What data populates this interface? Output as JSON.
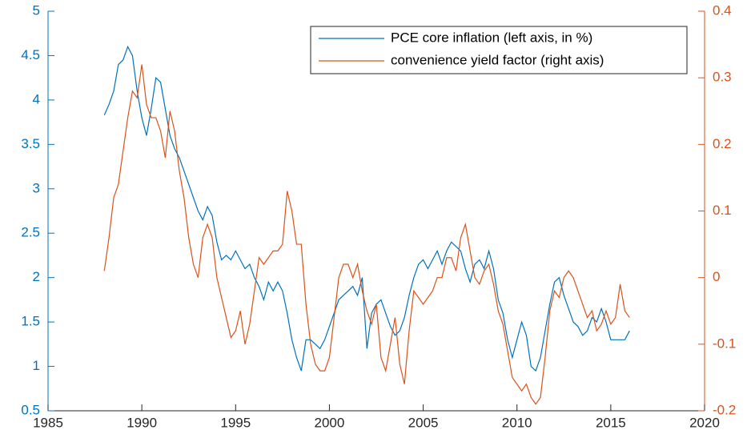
{
  "chart_data": {
    "type": "line",
    "x": [
      1988,
      1988.25,
      1988.5,
      1988.75,
      1989,
      1989.25,
      1989.5,
      1989.75,
      1990,
      1990.25,
      1990.5,
      1990.75,
      1991,
      1991.25,
      1991.5,
      1991.75,
      1992,
      1992.25,
      1992.5,
      1992.75,
      1993,
      1993.25,
      1993.5,
      1993.75,
      1994,
      1994.25,
      1994.5,
      1994.75,
      1995,
      1995.25,
      1995.5,
      1995.75,
      1996,
      1996.25,
      1996.5,
      1996.75,
      1997,
      1997.25,
      1997.5,
      1997.75,
      1998,
      1998.25,
      1998.5,
      1998.75,
      1999,
      1999.25,
      1999.5,
      1999.75,
      2000,
      2000.25,
      2000.5,
      2000.75,
      2001,
      2001.25,
      2001.5,
      2001.75,
      2002,
      2002.25,
      2002.5,
      2002.75,
      2003,
      2003.25,
      2003.5,
      2003.75,
      2004,
      2004.25,
      2004.5,
      2004.75,
      2005,
      2005.25,
      2005.5,
      2005.75,
      2006,
      2006.25,
      2006.5,
      2006.75,
      2007,
      2007.25,
      2007.5,
      2007.75,
      2008,
      2008.25,
      2008.5,
      2008.75,
      2009,
      2009.25,
      2009.5,
      2009.75,
      2010,
      2010.25,
      2010.5,
      2010.75,
      2011,
      2011.25,
      2011.5,
      2011.75,
      2012,
      2012.25,
      2012.5,
      2012.75,
      2013,
      2013.25,
      2013.5,
      2013.75,
      2014,
      2014.25,
      2014.5,
      2014.75,
      2015,
      2015.25,
      2015.5,
      2015.75,
      2016
    ],
    "series": [
      {
        "name": "PCE core inflation (left axis, in %)",
        "color": "#0072BD",
        "values": [
          3.83,
          3.95,
          4.1,
          4.4,
          4.45,
          4.6,
          4.5,
          4.1,
          3.8,
          3.6,
          3.9,
          4.25,
          4.2,
          3.9,
          3.6,
          3.45,
          3.35,
          3.2,
          3.05,
          2.9,
          2.75,
          2.65,
          2.8,
          2.7,
          2.4,
          2.2,
          2.25,
          2.2,
          2.3,
          2.2,
          2.1,
          2.15,
          2.0,
          1.9,
          1.75,
          1.95,
          1.85,
          1.95,
          1.85,
          1.6,
          1.3,
          1.1,
          0.95,
          1.3,
          1.3,
          1.25,
          1.2,
          1.3,
          1.45,
          1.6,
          1.75,
          1.8,
          1.85,
          1.9,
          1.8,
          2.0,
          1.2,
          1.6,
          1.7,
          1.75,
          1.6,
          1.45,
          1.35,
          1.4,
          1.55,
          1.8,
          2.0,
          2.15,
          2.2,
          2.1,
          2.2,
          2.3,
          2.15,
          2.3,
          2.4,
          2.35,
          2.3,
          2.1,
          1.95,
          2.15,
          2.2,
          2.1,
          2.3,
          2.1,
          1.75,
          1.6,
          1.3,
          1.1,
          1.3,
          1.5,
          1.35,
          1.0,
          0.95,
          1.1,
          1.4,
          1.7,
          1.95,
          2.0,
          1.8,
          1.65,
          1.5,
          1.45,
          1.35,
          1.4,
          1.55,
          1.5,
          1.65,
          1.5,
          1.3,
          1.3,
          1.3,
          1.3,
          1.4
        ]
      },
      {
        "name": "convenience yield factor (right axis)",
        "color": "#D95319",
        "axis": "y2",
        "values": [
          0.01,
          0.06,
          0.12,
          0.14,
          0.19,
          0.24,
          0.28,
          0.27,
          0.32,
          0.26,
          0.24,
          0.24,
          0.22,
          0.18,
          0.25,
          0.22,
          0.16,
          0.12,
          0.06,
          0.02,
          0.0,
          0.06,
          0.08,
          0.06,
          0.0,
          -0.03,
          -0.06,
          -0.09,
          -0.08,
          -0.05,
          -0.1,
          -0.07,
          -0.02,
          0.03,
          0.02,
          0.03,
          0.04,
          0.04,
          0.05,
          0.13,
          0.1,
          0.05,
          0.05,
          -0.04,
          -0.1,
          -0.13,
          -0.14,
          -0.14,
          -0.12,
          -0.06,
          0.0,
          0.02,
          0.02,
          0.0,
          0.02,
          -0.02,
          -0.05,
          -0.07,
          -0.04,
          -0.12,
          -0.14,
          -0.1,
          -0.06,
          -0.13,
          -0.16,
          -0.08,
          -0.02,
          -0.03,
          -0.04,
          -0.03,
          -0.02,
          0.0,
          0.0,
          0.03,
          0.03,
          0.01,
          0.06,
          0.08,
          0.04,
          0.0,
          -0.01,
          0.01,
          0.02,
          -0.01,
          -0.05,
          -0.07,
          -0.11,
          -0.15,
          -0.16,
          -0.17,
          -0.16,
          -0.18,
          -0.19,
          -0.18,
          -0.12,
          -0.05,
          -0.02,
          -0.03,
          0.0,
          0.01,
          0.0,
          -0.02,
          -0.04,
          -0.06,
          -0.05,
          -0.08,
          -0.07,
          -0.05,
          -0.07,
          -0.06,
          -0.01,
          -0.05,
          -0.06
        ]
      }
    ],
    "xlim": [
      1985,
      2020
    ],
    "xticks": [
      1985,
      1990,
      1995,
      2000,
      2005,
      2010,
      2015,
      2020
    ],
    "ylim": [
      0.5,
      5
    ],
    "yticks": [
      0.5,
      1,
      1.5,
      2,
      2.5,
      3,
      3.5,
      4,
      4.5,
      5
    ],
    "y2lim": [
      -0.2,
      0.4
    ],
    "y2ticks": [
      -0.2,
      -0.1,
      0,
      0.1,
      0.2,
      0.3,
      0.4
    ],
    "legend": "upper right"
  }
}
